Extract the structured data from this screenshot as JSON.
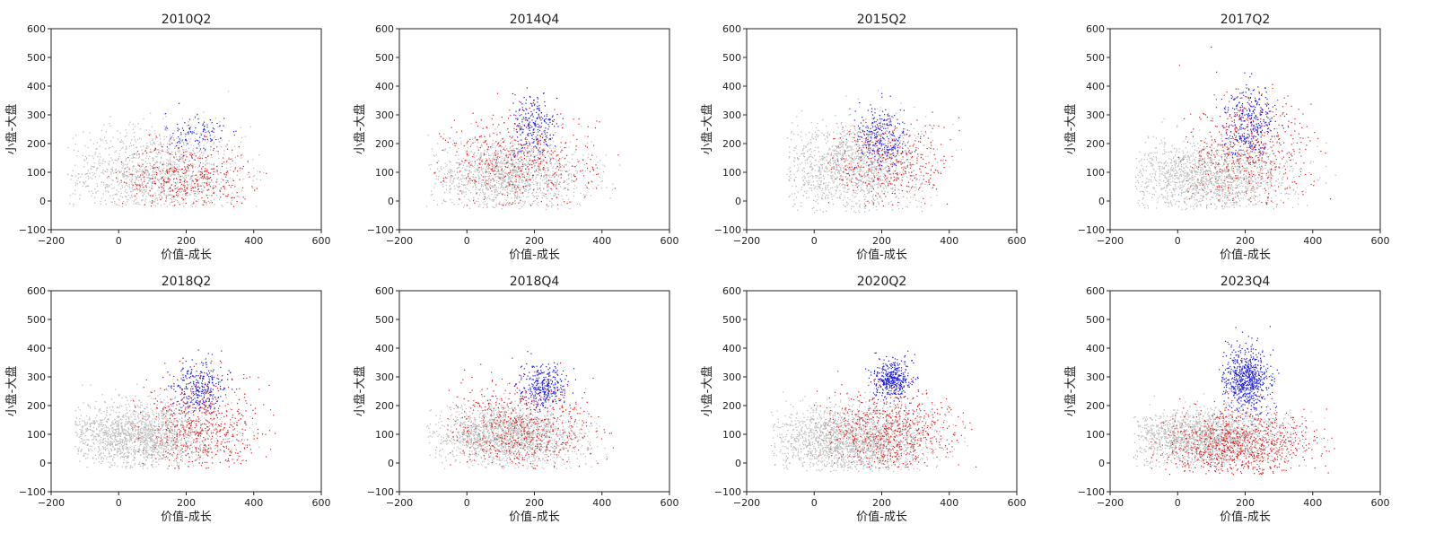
{
  "colors": {
    "gray": "#b8b8b8",
    "red": "#e01b1b",
    "blue": "#1a1ae6",
    "axis": "#222222"
  },
  "chart_data": [
    {
      "type": "scatter",
      "title": "2010Q2",
      "xlabel": "价值-成长",
      "ylabel": "小盘-大盘",
      "xlim": [
        -200,
        600
      ],
      "ylim": [
        -100,
        600
      ],
      "xticks": [
        "−200",
        "0",
        "200",
        "400",
        "600"
      ],
      "yticks": [
        "−100",
        "0",
        "100",
        "200",
        "300",
        "400",
        "500",
        "600"
      ],
      "grid": false,
      "legend": "none",
      "series": [
        {
          "color": "gray",
          "count": 1400,
          "cx": 110,
          "cy": 90,
          "sx": 130,
          "sy": 85,
          "xmin": -150,
          "xmax": 440,
          "ymin": -20,
          "ymax": 600
        },
        {
          "color": "red",
          "count": 420,
          "cx": 200,
          "cy": 80,
          "sx": 95,
          "sy": 60,
          "xmin": -50,
          "xmax": 440,
          "ymin": -20,
          "ymax": 300
        },
        {
          "color": "blue",
          "count": 110,
          "cx": 230,
          "cy": 230,
          "sx": 45,
          "sy": 40,
          "xmin": 100,
          "xmax": 360,
          "ymin": 140,
          "ymax": 340
        }
      ]
    },
    {
      "type": "scatter",
      "title": "2014Q4",
      "xlabel": "价值-成长",
      "ylabel": "小盘-大盘",
      "xlim": [
        -200,
        600
      ],
      "ylim": [
        -100,
        600
      ],
      "xticks": [
        "−200",
        "0",
        "200",
        "400",
        "600"
      ],
      "yticks": [
        "−100",
        "0",
        "100",
        "200",
        "300",
        "400",
        "500",
        "600"
      ],
      "grid": false,
      "legend": "none",
      "series": [
        {
          "color": "gray",
          "count": 1500,
          "cx": 120,
          "cy": 90,
          "sx": 120,
          "sy": 60,
          "xmin": -120,
          "xmax": 460,
          "ymin": -30,
          "ymax": 560
        },
        {
          "color": "red",
          "count": 480,
          "cx": 160,
          "cy": 140,
          "sx": 110,
          "sy": 85,
          "xmin": -100,
          "xmax": 450,
          "ymin": -20,
          "ymax": 560
        },
        {
          "color": "blue",
          "count": 230,
          "cx": 200,
          "cy": 260,
          "sx": 35,
          "sy": 55,
          "xmin": 130,
          "xmax": 300,
          "ymin": 140,
          "ymax": 400
        }
      ]
    },
    {
      "type": "scatter",
      "title": "2015Q2",
      "xlabel": "价值-成长",
      "ylabel": "小盘-大盘",
      "xlim": [
        -200,
        600
      ],
      "ylim": [
        -100,
        600
      ],
      "xticks": [
        "−200",
        "0",
        "200",
        "400",
        "600"
      ],
      "yticks": [
        "−100",
        "0",
        "100",
        "200",
        "300",
        "400",
        "500",
        "600"
      ],
      "grid": false,
      "legend": "none",
      "series": [
        {
          "color": "gray",
          "count": 1500,
          "cx": 110,
          "cy": 120,
          "sx": 110,
          "sy": 80,
          "xmin": -80,
          "xmax": 440,
          "ymin": -40,
          "ymax": 560
        },
        {
          "color": "red",
          "count": 380,
          "cx": 230,
          "cy": 130,
          "sx": 85,
          "sy": 75,
          "xmin": 40,
          "xmax": 440,
          "ymin": -20,
          "ymax": 560
        },
        {
          "color": "blue",
          "count": 270,
          "cx": 200,
          "cy": 220,
          "sx": 40,
          "sy": 55,
          "xmin": 110,
          "xmax": 300,
          "ymin": 100,
          "ymax": 420
        }
      ]
    },
    {
      "type": "scatter",
      "title": "2017Q2",
      "xlabel": "价值-成长",
      "ylabel": "小盘-大盘",
      "xlim": [
        -200,
        600
      ],
      "ylim": [
        -100,
        600
      ],
      "xticks": [
        "−200",
        "0",
        "200",
        "400",
        "600"
      ],
      "yticks": [
        "−100",
        "0",
        "100",
        "200",
        "300",
        "400",
        "500",
        "600"
      ],
      "grid": false,
      "legend": "none",
      "series": [
        {
          "color": "gray",
          "count": 1600,
          "cx": 100,
          "cy": 85,
          "sx": 120,
          "sy": 60,
          "xmin": -130,
          "xmax": 470,
          "ymin": -30,
          "ymax": 560
        },
        {
          "color": "red",
          "count": 560,
          "cx": 210,
          "cy": 170,
          "sx": 95,
          "sy": 95,
          "xmin": 0,
          "xmax": 470,
          "ymin": -20,
          "ymax": 580
        },
        {
          "color": "blue",
          "count": 320,
          "cx": 215,
          "cy": 280,
          "sx": 38,
          "sy": 60,
          "xmin": 130,
          "xmax": 320,
          "ymin": 150,
          "ymax": 460
        }
      ]
    },
    {
      "type": "scatter",
      "title": "2018Q2",
      "xlabel": "价值-成长",
      "ylabel": "小盘-大盘",
      "xlim": [
        -200,
        600
      ],
      "ylim": [
        -100,
        600
      ],
      "xticks": [
        "−200",
        "0",
        "200",
        "400",
        "600"
      ],
      "yticks": [
        "−100",
        "0",
        "100",
        "200",
        "300",
        "400",
        "500",
        "600"
      ],
      "grid": false,
      "legend": "none",
      "series": [
        {
          "color": "gray",
          "count": 1900,
          "cx": 70,
          "cy": 95,
          "sx": 115,
          "sy": 60,
          "xmin": -130,
          "xmax": 460,
          "ymin": -20,
          "ymax": 570
        },
        {
          "color": "red",
          "count": 600,
          "cx": 250,
          "cy": 120,
          "sx": 90,
          "sy": 85,
          "xmin": 40,
          "xmax": 470,
          "ymin": -20,
          "ymax": 520
        },
        {
          "color": "blue",
          "count": 290,
          "cx": 240,
          "cy": 270,
          "sx": 40,
          "sy": 45,
          "xmin": 140,
          "xmax": 340,
          "ymin": 170,
          "ymax": 400
        }
      ]
    },
    {
      "type": "scatter",
      "title": "2018Q4",
      "xlabel": "价值-成长",
      "ylabel": "小盘-大盘",
      "xlim": [
        -200,
        600
      ],
      "ylim": [
        -100,
        600
      ],
      "xticks": [
        "−200",
        "0",
        "200",
        "400",
        "600"
      ],
      "yticks": [
        "−100",
        "0",
        "100",
        "200",
        "300",
        "400",
        "500",
        "600"
      ],
      "grid": false,
      "legend": "none",
      "series": [
        {
          "color": "gray",
          "count": 1800,
          "cx": 120,
          "cy": 90,
          "sx": 110,
          "sy": 55,
          "xmin": -120,
          "xmax": 440,
          "ymin": -20,
          "ymax": 560
        },
        {
          "color": "red",
          "count": 640,
          "cx": 170,
          "cy": 120,
          "sx": 110,
          "sy": 80,
          "xmin": -60,
          "xmax": 440,
          "ymin": -20,
          "ymax": 560
        },
        {
          "color": "blue",
          "count": 320,
          "cx": 225,
          "cy": 265,
          "sx": 35,
          "sy": 38,
          "xmin": 140,
          "xmax": 330,
          "ymin": 180,
          "ymax": 400
        }
      ]
    },
    {
      "type": "scatter",
      "title": "2020Q2",
      "xlabel": "价值-成长",
      "ylabel": "小盘-大盘",
      "xlim": [
        -200,
        600
      ],
      "ylim": [
        -100,
        600
      ],
      "xticks": [
        "−200",
        "0",
        "200",
        "400",
        "600"
      ],
      "yticks": [
        "−100",
        "0",
        "100",
        "200",
        "300",
        "400",
        "500",
        "600"
      ],
      "grid": false,
      "legend": "none",
      "series": [
        {
          "color": "gray",
          "count": 2000,
          "cx": 110,
          "cy": 80,
          "sx": 120,
          "sy": 60,
          "xmin": -130,
          "xmax": 480,
          "ymin": -30,
          "ymax": 540
        },
        {
          "color": "red",
          "count": 700,
          "cx": 220,
          "cy": 110,
          "sx": 95,
          "sy": 80,
          "xmin": 0,
          "xmax": 480,
          "ymin": -20,
          "ymax": 520
        },
        {
          "color": "blue",
          "count": 420,
          "cx": 228,
          "cy": 290,
          "sx": 28,
          "sy": 35,
          "xmin": 150,
          "xmax": 310,
          "ymin": 190,
          "ymax": 420
        }
      ]
    },
    {
      "type": "scatter",
      "title": "2023Q4",
      "xlabel": "价值-成长",
      "ylabel": "小盘-大盘",
      "xlim": [
        -200,
        600
      ],
      "ylim": [
        -100,
        600
      ],
      "xticks": [
        "−200",
        "0",
        "200",
        "400",
        "600"
      ],
      "yticks": [
        "−100",
        "0",
        "100",
        "200",
        "300",
        "400",
        "500",
        "600"
      ],
      "grid": false,
      "legend": "none",
      "series": [
        {
          "color": "gray",
          "count": 2000,
          "cx": 90,
          "cy": 85,
          "sx": 115,
          "sy": 50,
          "xmin": -130,
          "xmax": 460,
          "ymin": -20,
          "ymax": 520
        },
        {
          "color": "red",
          "count": 900,
          "cx": 180,
          "cy": 60,
          "sx": 115,
          "sy": 60,
          "xmin": -80,
          "xmax": 470,
          "ymin": -40,
          "ymax": 380
        },
        {
          "color": "blue",
          "count": 700,
          "cx": 205,
          "cy": 290,
          "sx": 35,
          "sy": 55,
          "xmin": 120,
          "xmax": 300,
          "ymin": 150,
          "ymax": 520
        }
      ]
    }
  ]
}
